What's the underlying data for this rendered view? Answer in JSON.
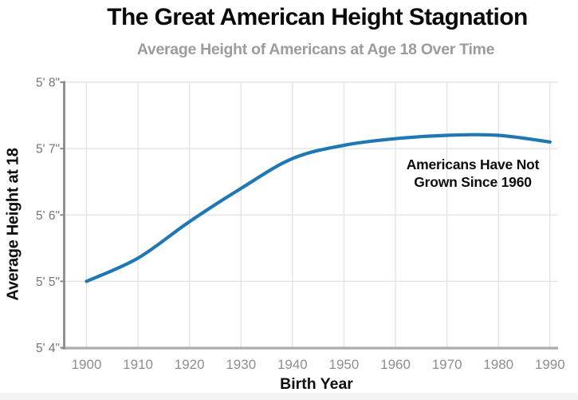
{
  "header": {
    "title": "The Great American Height Stagnation",
    "subtitle": "Average Height of Americans at Age 18 Over Time"
  },
  "annotation": {
    "line1": "Americans Have Not",
    "line2": "Grown Since 1960"
  },
  "colors": {
    "line": "#1f77b4",
    "grid": "#e2e2e4",
    "y_axis": "#8a8a8e",
    "x_axis": "#acacac",
    "y_tick_label": "#74747e",
    "x_tick_label": "#8e8e8e",
    "title": "#0a0a0a",
    "subtitle": "#9a9ca0",
    "annotation": "#0d0d0d",
    "footer_strip": "#f3f3f4"
  },
  "chart_data": {
    "type": "line",
    "title": "The Great American Height Stagnation",
    "subtitle": "Average Height of Americans at Age 18 Over Time",
    "xlabel": "Birth Year",
    "ylabel": "Average Height at 18",
    "x": [
      1900,
      1910,
      1920,
      1930,
      1940,
      1950,
      1960,
      1970,
      1980,
      1990
    ],
    "values": [
      65.0,
      65.35,
      65.9,
      66.4,
      66.85,
      67.05,
      67.15,
      67.2,
      67.2,
      67.1
    ],
    "units": "inches",
    "x_tick_labels": [
      "1900",
      "1910",
      "1920",
      "1930",
      "1940",
      "1950",
      "1960",
      "1970",
      "1980",
      "1990"
    ],
    "y_tick_values": [
      64,
      65,
      66,
      67,
      68
    ],
    "y_tick_labels": [
      "5' 4\"",
      "5' 5\"",
      "5' 6\"",
      "5' 7\"",
      "5' 8\""
    ],
    "xlim": [
      1900,
      1990
    ],
    "ylim": [
      64,
      68
    ],
    "grid": true,
    "legend": false,
    "line_color": "#1f77b4",
    "annotation": "Americans Have Not Grown Since 1960"
  }
}
